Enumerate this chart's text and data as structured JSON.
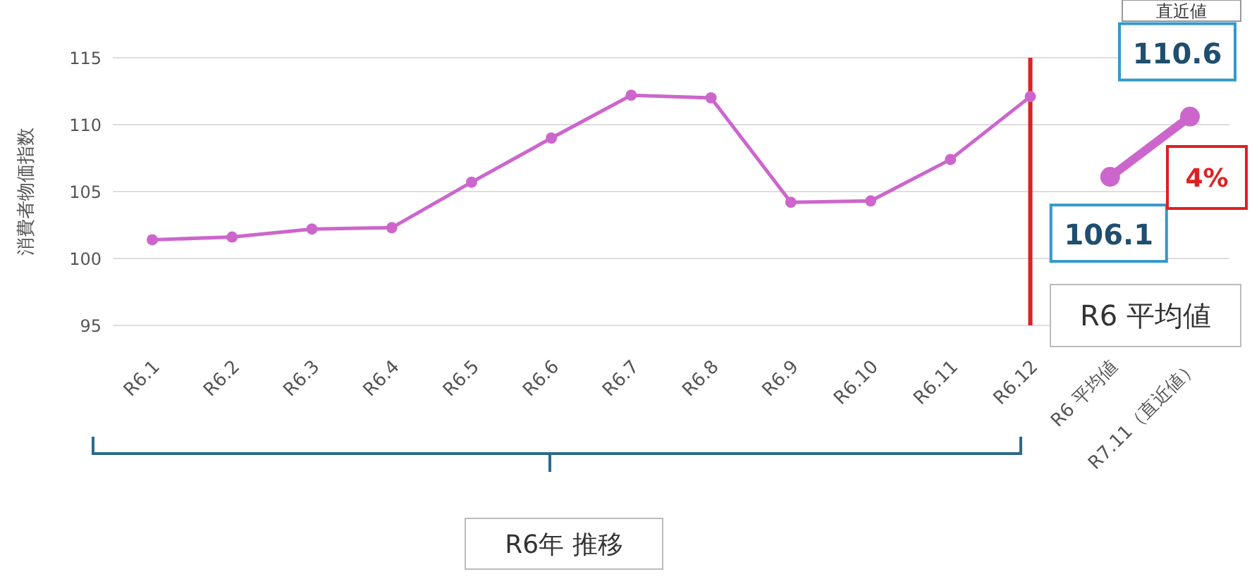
{
  "chart_data": {
    "type": "line",
    "ylabel": "消費者物価指数",
    "categories": [
      "R6.1",
      "R6.2",
      "R6.3",
      "R6.4",
      "R6.5",
      "R6.6",
      "R6.7",
      "R6.8",
      "R6.9",
      "R6.10",
      "R6.11",
      "R6.12",
      "R6 平均値",
      "R7.11（直近値）"
    ],
    "series": [
      {
        "color": "#cc66cc",
        "values": [
          101.4,
          101.6,
          102.2,
          102.3,
          105.7,
          109.0,
          112.2,
          112.0,
          104.2,
          104.3,
          107.4,
          112.1,
          null,
          null
        ]
      },
      {
        "color": "#cc66cc",
        "values": [
          null,
          null,
          null,
          null,
          null,
          null,
          null,
          null,
          null,
          null,
          null,
          null,
          106.1,
          110.6
        ],
        "value_labels": [
          null,
          null,
          null,
          null,
          null,
          null,
          null,
          null,
          null,
          null,
          null,
          null,
          "106.1",
          "110.6"
        ]
      }
    ],
    "ylim": [
      95,
      115
    ],
    "yticks": [
      95,
      100,
      105,
      110,
      115
    ],
    "grid": "y",
    "legend": false,
    "marker": "circle",
    "line_style": "solid",
    "ref_lines": [
      {
        "axis": "x",
        "value": "R6.12",
        "color": "#e02020"
      }
    ],
    "annotations": [
      "直近値",
      "4%",
      "R6 平均値",
      "R6年 推移"
    ]
  }
}
